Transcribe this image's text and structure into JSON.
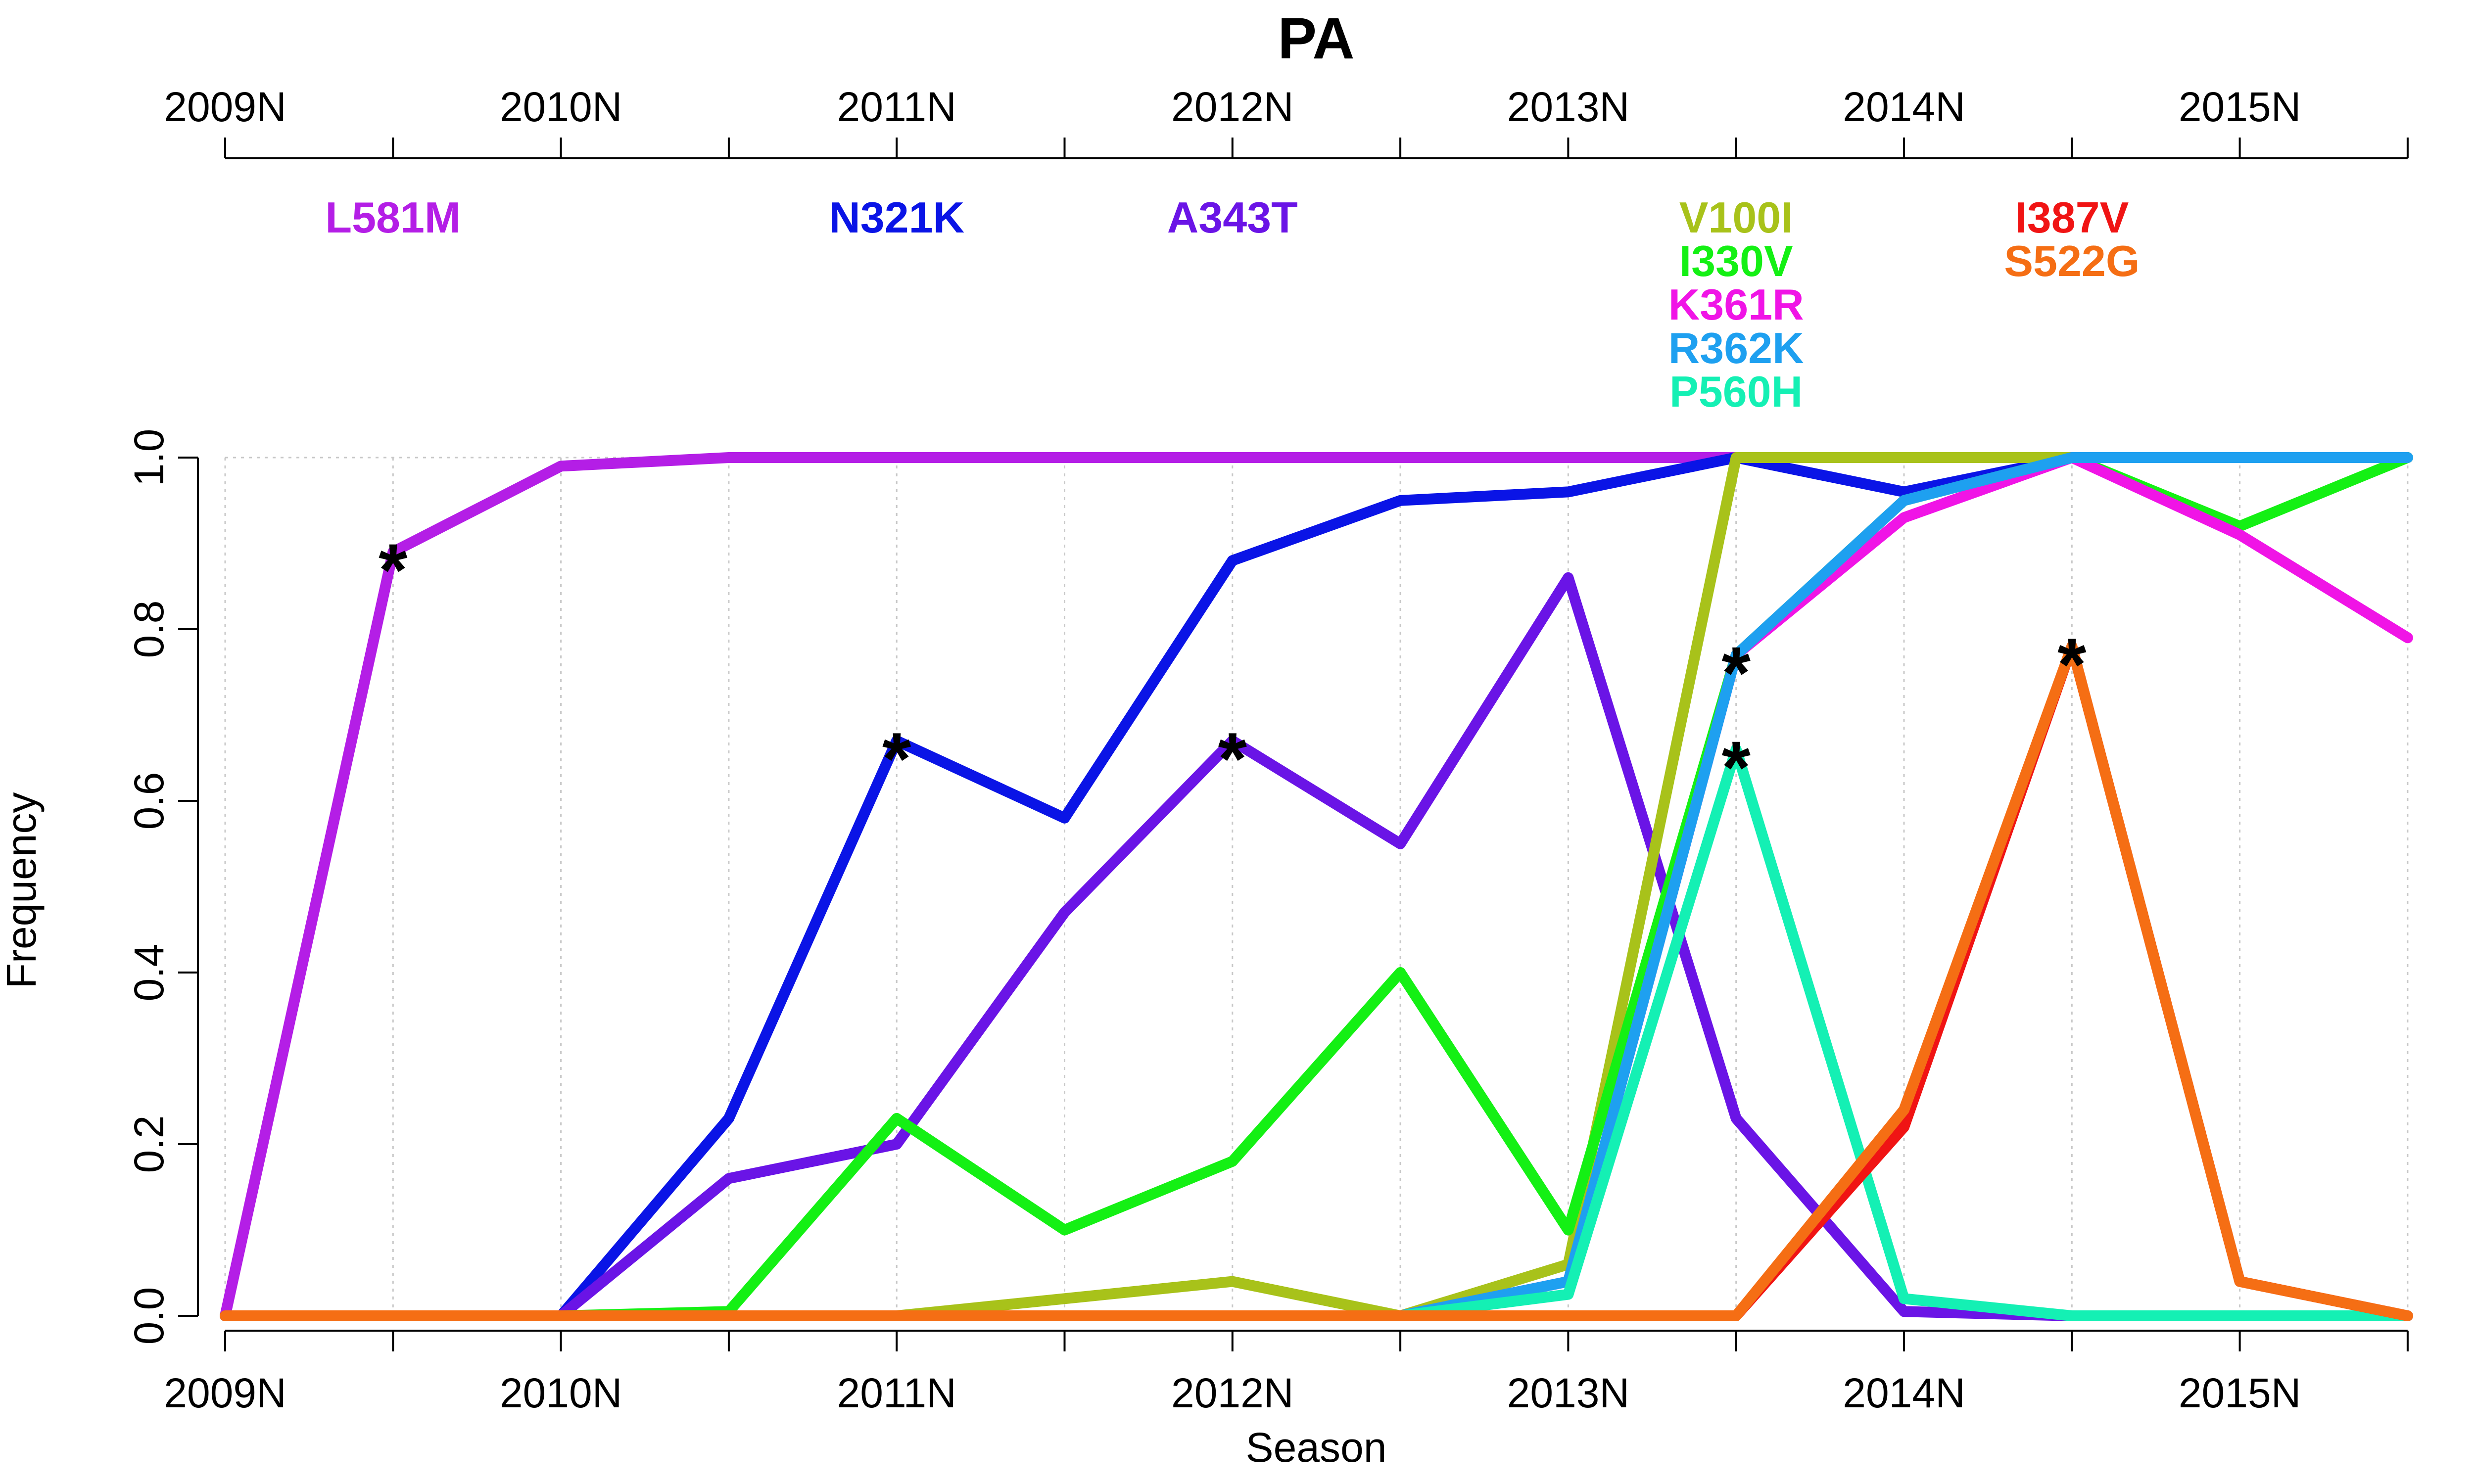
{
  "chart_data": {
    "type": "line",
    "title": "PA",
    "xlabel": "Season",
    "ylabel": "Frequency",
    "ylim": [
      0,
      1
    ],
    "y_ticks": [
      "0.0",
      "0.2",
      "0.4",
      "0.6",
      "0.8",
      "1.0"
    ],
    "x_tick_labels": [
      "2009N",
      "2010N",
      "2011N",
      "2012N",
      "2013N",
      "2014N",
      "2015N"
    ],
    "seasons": [
      "2009N",
      "2009S",
      "2010N",
      "2010S",
      "2011N",
      "2011S",
      "2012N",
      "2012S",
      "2013N",
      "2013S",
      "2014N",
      "2014S",
      "2015N",
      "2015S"
    ],
    "grid": true,
    "series": [
      {
        "name": "L581M",
        "color": "#b41ee6",
        "values": [
          0,
          0.89,
          0.99,
          1.0,
          1.0,
          1.0,
          1.0,
          1.0,
          1.0,
          1.0,
          1.0,
          1.0,
          1.0,
          1.0
        ],
        "star_index": 1
      },
      {
        "name": "N321K",
        "color": "#0a14e6",
        "values": [
          0,
          0,
          0,
          0.23,
          0.67,
          0.58,
          0.88,
          0.95,
          0.96,
          1.0,
          0.96,
          1.0,
          1.0,
          1.0
        ],
        "star_index": 4
      },
      {
        "name": "A343T",
        "color": "#6a14e6",
        "values": [
          0,
          0,
          0,
          0.16,
          0.2,
          0.47,
          0.67,
          0.55,
          0.86,
          0.23,
          0.005,
          0,
          0,
          0
        ],
        "star_index": 6
      },
      {
        "name": "V100I",
        "color": "#a8c21a",
        "values": [
          0,
          0,
          0,
          0,
          0,
          0.02,
          0.04,
          0,
          0.06,
          1.0,
          1.0,
          1.0,
          1.0,
          1.0
        ],
        "star_index": null
      },
      {
        "name": "I330V",
        "color": "#14f014",
        "values": [
          0,
          0,
          0,
          0.005,
          0.23,
          0.1,
          0.18,
          0.4,
          0.1,
          0.77,
          0.95,
          1.0,
          0.92,
          1.0
        ],
        "star_index": null
      },
      {
        "name": "K361R",
        "color": "#f014e6",
        "values": [
          0,
          0,
          0,
          0,
          0,
          0,
          0,
          0,
          0.04,
          0.77,
          0.93,
          1.0,
          0.91,
          0.79
        ],
        "star_index": null
      },
      {
        "name": "R362K",
        "color": "#1ea0f0",
        "values": [
          0,
          0,
          0,
          0,
          0,
          0,
          0,
          0,
          0.04,
          0.77,
          0.95,
          1.0,
          1.0,
          1.0
        ],
        "star_index": 9
      },
      {
        "name": "P560H",
        "color": "#14f0b4",
        "values": [
          0,
          0,
          0,
          0,
          0,
          0,
          0,
          0,
          0.025,
          0.66,
          0.02,
          0,
          0,
          0
        ],
        "star_index": 9
      },
      {
        "name": "I387V",
        "color": "#f01414",
        "values": [
          0,
          0,
          0,
          0,
          0,
          0,
          0,
          0,
          0,
          0,
          0.22,
          0.78,
          0.04,
          0
        ],
        "star_index": null
      },
      {
        "name": "S522G",
        "color": "#f56e14",
        "values": [
          0,
          0,
          0,
          0,
          0,
          0,
          0,
          0,
          0,
          0,
          0.24,
          0.78,
          0.04,
          0
        ],
        "star_index": 11
      }
    ],
    "mutation_labels": [
      {
        "text": "L581M",
        "color": "#b41ee6",
        "season_index": 1,
        "row": 0
      },
      {
        "text": "N321K",
        "color": "#0a14e6",
        "season_index": 4,
        "row": 0
      },
      {
        "text": "A343T",
        "color": "#6a14e6",
        "season_index": 6,
        "row": 0
      },
      {
        "text": "V100I",
        "color": "#a8c21a",
        "season_index": 9,
        "row": 0
      },
      {
        "text": "I330V",
        "color": "#14f014",
        "season_index": 9,
        "row": 1
      },
      {
        "text": "K361R",
        "color": "#f014e6",
        "season_index": 9,
        "row": 2
      },
      {
        "text": "R362K",
        "color": "#1ea0f0",
        "season_index": 9,
        "row": 3
      },
      {
        "text": "P560H",
        "color": "#14f0b4",
        "season_index": 9,
        "row": 4
      },
      {
        "text": "I387V",
        "color": "#f01414",
        "season_index": 11,
        "row": 0
      },
      {
        "text": "S522G",
        "color": "#f56e14",
        "season_index": 11,
        "row": 1
      }
    ]
  }
}
